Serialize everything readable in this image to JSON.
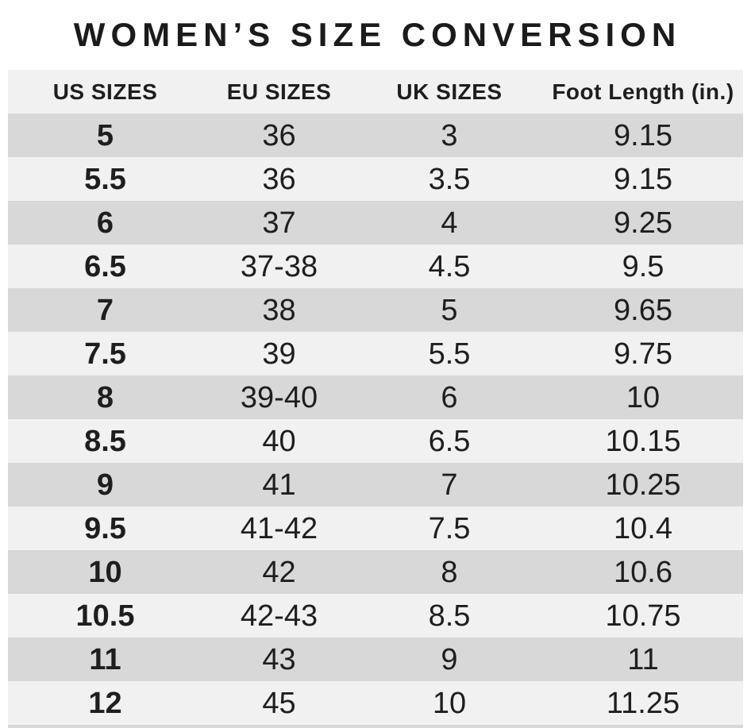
{
  "title": "WOMEN’S SIZE CONVERSION",
  "chart_data": {
    "type": "table",
    "title": "WOMEN’S SIZE CONVERSION",
    "columns": [
      "US SIZES",
      "EU SIZES",
      "UK SIZES",
      "Foot Length (in.)"
    ],
    "rows": [
      [
        "5",
        "36",
        "3",
        "9.15"
      ],
      [
        "5.5",
        "36",
        "3.5",
        "9.15"
      ],
      [
        "6",
        "37",
        "4",
        "9.25"
      ],
      [
        "6.5",
        "37-38",
        "4.5",
        "9.5"
      ],
      [
        "7",
        "38",
        "5",
        "9.65"
      ],
      [
        "7.5",
        "39",
        "5.5",
        "9.75"
      ],
      [
        "8",
        "39-40",
        "6",
        "10"
      ],
      [
        "8.5",
        "40",
        "6.5",
        "10.15"
      ],
      [
        "9",
        "41",
        "7",
        "10.25"
      ],
      [
        "9.5",
        "41-42",
        "7.5",
        "10.4"
      ],
      [
        "10",
        "42",
        "8",
        "10.6"
      ],
      [
        "10.5",
        "42-43",
        "8.5",
        "10.75"
      ],
      [
        "11",
        "43",
        "9",
        "11"
      ],
      [
        "12",
        "45",
        "10",
        "11.25"
      ]
    ],
    "layout": {
      "first_column_bold": true,
      "striping": "alternating starting dark",
      "legend_position": "none",
      "grid": "off"
    }
  },
  "colors": {
    "background": "#ffffff",
    "row_dark": "#d8d8d8",
    "row_light": "#f1f1f1",
    "text": "#1e1e1e"
  }
}
